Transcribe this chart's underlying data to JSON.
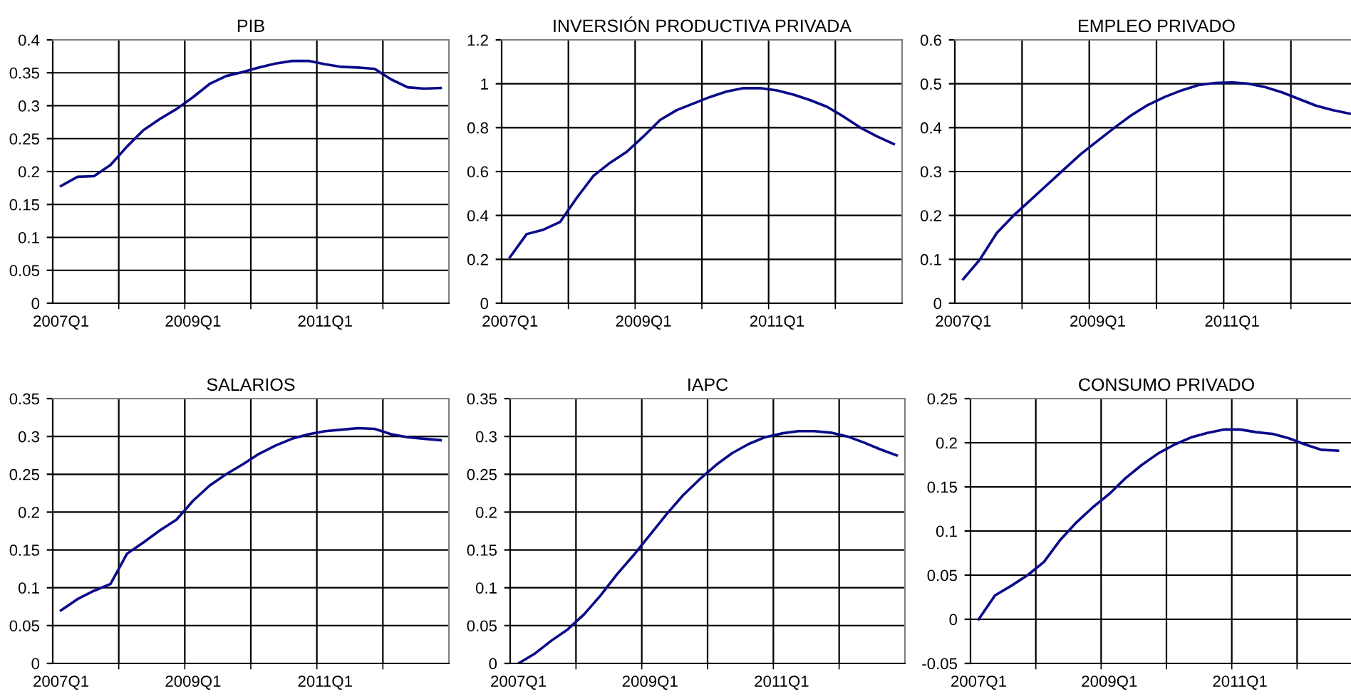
{
  "chart_data": [
    {
      "type": "line",
      "title": "PIB",
      "categories": [
        "2007Q1",
        null,
        null,
        null,
        null,
        null,
        null,
        null,
        "2009Q1",
        null,
        null,
        null,
        null,
        null,
        null,
        null,
        "2011Q1",
        null,
        null,
        null,
        null,
        null,
        null,
        null
      ],
      "ylim": [
        0,
        0.4
      ],
      "yticks": [
        0,
        0.05,
        0.1,
        0.15,
        0.2,
        0.25,
        0.3,
        0.35,
        0.4
      ],
      "grid": true,
      "series": [
        {
          "color": "#0a0a8a",
          "values": [
            0.178,
            0.192,
            0.193,
            0.21,
            0.238,
            0.263,
            0.28,
            0.295,
            0.313,
            0.333,
            0.345,
            0.351,
            0.358,
            0.364,
            0.368,
            0.368,
            0.363,
            0.359,
            0.358,
            0.356,
            0.34,
            0.328,
            0.326,
            0.327
          ]
        }
      ]
    },
    {
      "type": "line",
      "title": "INVERSIÓN PRODUCTIVA PRIVADA",
      "categories": [
        "2007Q1",
        null,
        null,
        null,
        null,
        null,
        null,
        null,
        "2009Q1",
        null,
        null,
        null,
        null,
        null,
        null,
        null,
        "2011Q1",
        null,
        null,
        null,
        null,
        null,
        null,
        null
      ],
      "ylim": [
        0,
        1.2
      ],
      "yticks": [
        0,
        0.2,
        0.4,
        0.6,
        0.8,
        1,
        1.2
      ],
      "grid": true,
      "series": [
        {
          "color": "#0a0a8a",
          "values": [
            0.21,
            0.315,
            0.335,
            0.37,
            0.48,
            0.58,
            0.64,
            0.69,
            0.76,
            0.835,
            0.88,
            0.91,
            0.94,
            0.965,
            0.98,
            0.98,
            0.97,
            0.95,
            0.925,
            0.895,
            0.85,
            0.8,
            0.76,
            0.725
          ]
        }
      ]
    },
    {
      "type": "line",
      "title": "EMPLEO PRIVADO",
      "categories": [
        "2007Q1",
        null,
        null,
        null,
        null,
        null,
        null,
        null,
        "2009Q1",
        null,
        null,
        null,
        null,
        null,
        null,
        null,
        "2011Q1",
        null,
        null,
        null,
        null,
        null,
        null,
        null
      ],
      "ylim": [
        0,
        0.6
      ],
      "yticks": [
        0,
        0.1,
        0.2,
        0.3,
        0.4,
        0.5,
        0.6
      ],
      "grid": true,
      "series": [
        {
          "color": "#0a0a8a",
          "values": [
            0.055,
            0.1,
            0.16,
            0.2,
            0.235,
            0.27,
            0.305,
            0.34,
            0.37,
            0.4,
            0.428,
            0.452,
            0.47,
            0.485,
            0.497,
            0.502,
            0.503,
            0.5,
            0.492,
            0.48,
            0.465,
            0.45,
            0.44,
            0.432
          ]
        }
      ]
    },
    {
      "type": "line",
      "title": "SALARIOS",
      "categories": [
        "2007Q1",
        null,
        null,
        null,
        null,
        null,
        null,
        null,
        "2009Q1",
        null,
        null,
        null,
        null,
        null,
        null,
        null,
        "2011Q1",
        null,
        null,
        null,
        null,
        null,
        null,
        null
      ],
      "ylim": [
        0,
        0.35
      ],
      "yticks": [
        0,
        0.05,
        0.1,
        0.15,
        0.2,
        0.25,
        0.3,
        0.35
      ],
      "grid": true,
      "series": [
        {
          "color": "#0a0a8a",
          "values": [
            0.07,
            0.085,
            0.096,
            0.105,
            0.145,
            0.16,
            0.176,
            0.19,
            0.215,
            0.235,
            0.25,
            0.263,
            0.277,
            0.288,
            0.297,
            0.303,
            0.307,
            0.309,
            0.311,
            0.31,
            0.303,
            0.299,
            0.297,
            0.295
          ]
        }
      ]
    },
    {
      "type": "line",
      "title": "IAPC",
      "categories": [
        "2007Q1",
        null,
        null,
        null,
        null,
        null,
        null,
        null,
        "2009Q1",
        null,
        null,
        null,
        null,
        null,
        null,
        null,
        "2011Q1",
        null,
        null,
        null,
        null,
        null,
        null,
        null
      ],
      "ylim": [
        0,
        0.35
      ],
      "yticks": [
        0,
        0.05,
        0.1,
        0.15,
        0.2,
        0.25,
        0.3,
        0.35
      ],
      "grid": true,
      "series": [
        {
          "color": "#0a0a8a",
          "values": [
            0,
            0.013,
            0.03,
            0.045,
            0.065,
            0.09,
            0.118,
            0.143,
            0.17,
            0.197,
            0.222,
            0.243,
            0.262,
            0.278,
            0.29,
            0.299,
            0.304,
            0.307,
            0.307,
            0.305,
            0.3,
            0.292,
            0.283,
            0.275
          ]
        }
      ]
    },
    {
      "type": "line",
      "title": "CONSUMO PRIVADO",
      "categories": [
        "2007Q1",
        null,
        null,
        null,
        null,
        null,
        null,
        null,
        "2009Q1",
        null,
        null,
        null,
        null,
        null,
        null,
        null,
        "2011Q1",
        null,
        null,
        null,
        null,
        null,
        null,
        null
      ],
      "ylim": [
        -0.05,
        0.25
      ],
      "yticks": [
        -0.05,
        0,
        0.05,
        0.1,
        0.15,
        0.2,
        0.25
      ],
      "grid": true,
      "series": [
        {
          "color": "#0a0a8a",
          "values": [
            0,
            0.027,
            0.038,
            0.05,
            0.065,
            0.09,
            0.11,
            0.127,
            0.142,
            0.16,
            0.175,
            0.188,
            0.198,
            0.206,
            0.211,
            0.215,
            0.215,
            0.212,
            0.21,
            0.205,
            0.198,
            0.192,
            0.191,
            null
          ]
        }
      ]
    }
  ]
}
